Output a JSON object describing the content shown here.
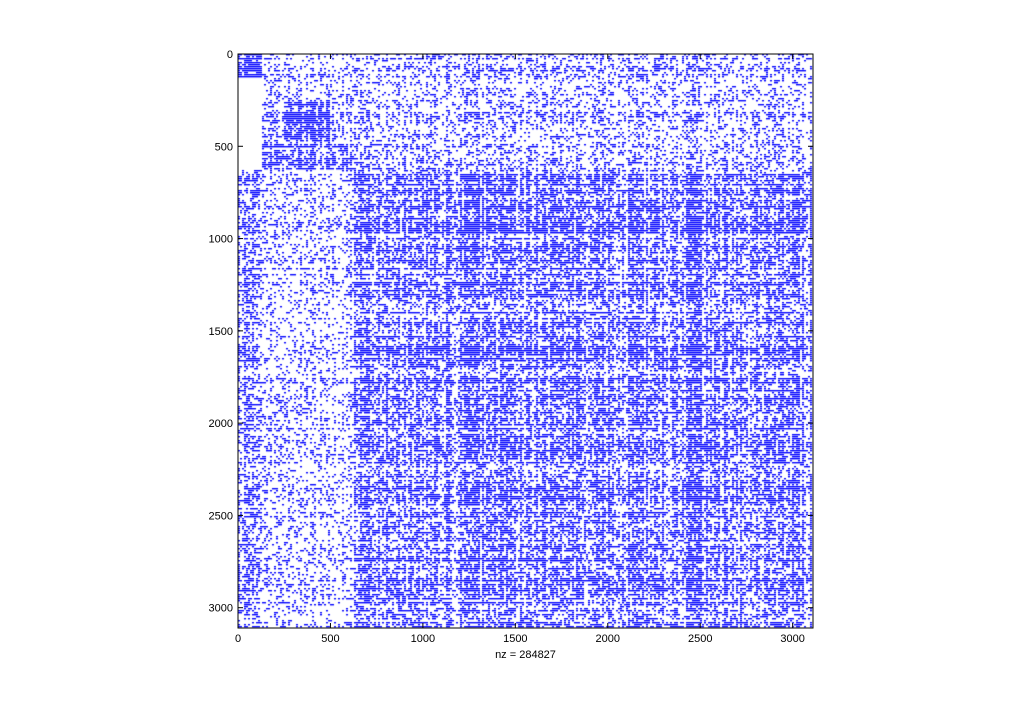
{
  "chart_data": {
    "type": "heatmap",
    "title": "",
    "xlabel": "nz = 284827",
    "ylabel": "",
    "matrix_size": 3110,
    "xlim": [
      0,
      3110
    ],
    "ylim": [
      3110,
      0
    ],
    "x_ticks": [
      0,
      500,
      1000,
      1500,
      2000,
      2500,
      3000
    ],
    "y_ticks": [
      0,
      500,
      1000,
      1500,
      2000,
      2500,
      3000
    ],
    "marker_color": "#0000ff",
    "grid": false,
    "legend": "none",
    "blocks": [
      {
        "region": "top-left",
        "rows": [
          0,
          130
        ],
        "cols": [
          0,
          130
        ],
        "density": 0.95
      },
      {
        "region": "first-block-upper",
        "rows": [
          0,
          100
        ],
        "cols": [
          130,
          630
        ],
        "density": 0.18
      },
      {
        "region": "first-block-body",
        "rows": [
          100,
          630
        ],
        "cols": [
          130,
          630
        ],
        "density": 0.35
      },
      {
        "region": "inner-dense-block",
        "rows": [
          260,
          480
        ],
        "cols": [
          250,
          500
        ],
        "density": 0.85
      },
      {
        "region": "first-block-lower",
        "rows": [
          490,
          630
        ],
        "cols": [
          130,
          630
        ],
        "density": 0.6
      },
      {
        "region": "left-column-strip",
        "rows": [
          630,
          3110
        ],
        "cols": [
          0,
          130
        ],
        "density": 0.45
      },
      {
        "region": "left-mid-strip",
        "rows": [
          630,
          3110
        ],
        "cols": [
          130,
          630
        ],
        "density": 0.25
      },
      {
        "region": "top-right-strip",
        "rows": [
          0,
          630
        ],
        "cols": [
          630,
          3110
        ],
        "density": 0.3
      },
      {
        "region": "main-block",
        "rows": [
          630,
          3110
        ],
        "cols": [
          630,
          3110
        ],
        "density": 0.55
      }
    ]
  }
}
